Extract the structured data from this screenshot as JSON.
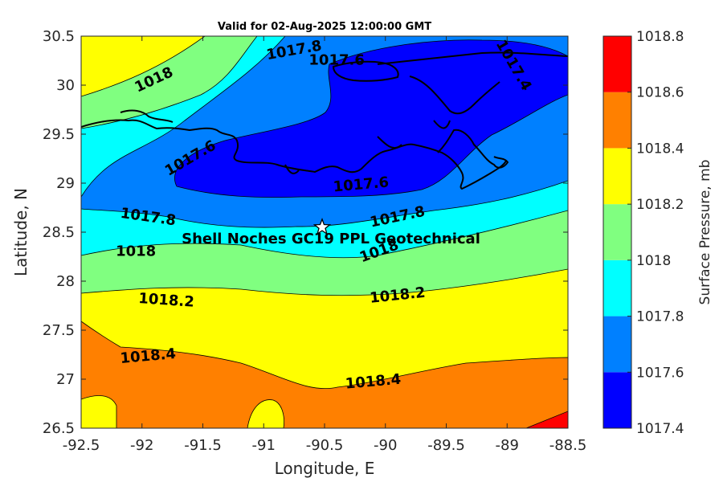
{
  "chart_data": {
    "type": "contour",
    "title": "Valid for 02-Aug-2025 12:00:00 GMT",
    "xlabel": "Longitude, E",
    "ylabel": "Latitude, N",
    "colorbar_label": "Surface Pressure, mb",
    "xlim": [
      -92.5,
      -88.5
    ],
    "ylim": [
      26.5,
      30.5
    ],
    "x_ticks": [
      "-92.5",
      "-92",
      "-91.5",
      "-91",
      "-90.5",
      "-90",
      "-89.5",
      "-89",
      "-88.5"
    ],
    "y_ticks": [
      "30.5",
      "30",
      "29.5",
      "29",
      "28.5",
      "28",
      "27.5",
      "27",
      "26.5"
    ],
    "levels": [
      {
        "value": "1017.4",
        "color": "#0000ff"
      },
      {
        "value": "1017.6",
        "color": "#0080ff"
      },
      {
        "value": "1017.8",
        "color": "#00ffff"
      },
      {
        "value": "1018",
        "color": "#80ff80"
      },
      {
        "value": "1018.2",
        "color": "#ffff00"
      },
      {
        "value": "1018.4",
        "color": "#ff8000"
      },
      {
        "value": "1018.6",
        "color": "#ff0000"
      },
      {
        "value": "1018.8",
        "color": "#800000"
      }
    ],
    "contour_labels": [
      {
        "text": "1017.8",
        "lon": -90.75,
        "lat": 30.35,
        "angle": -10
      },
      {
        "text": "1017.6",
        "lon": -90.4,
        "lat": 30.25,
        "angle": 0
      },
      {
        "text": "1017.4",
        "lon": -88.95,
        "lat": 30.2,
        "angle": 60
      },
      {
        "text": "1018",
        "lon": -91.9,
        "lat": 30.05,
        "angle": -25
      },
      {
        "text": "1017.6",
        "lon": -91.6,
        "lat": 29.25,
        "angle": -30
      },
      {
        "text": "1017.6",
        "lon": -90.2,
        "lat": 28.98,
        "angle": -5
      },
      {
        "text": "1017.8",
        "lon": -91.95,
        "lat": 28.65,
        "angle": 8
      },
      {
        "text": "1017.8",
        "lon": -89.9,
        "lat": 28.65,
        "angle": -12
      },
      {
        "text": "1018",
        "lon": -92.05,
        "lat": 28.3,
        "angle": 0
      },
      {
        "text": "1018",
        "lon": -90.05,
        "lat": 28.3,
        "angle": -20
      },
      {
        "text": "1018.2",
        "lon": -91.8,
        "lat": 27.8,
        "angle": 4
      },
      {
        "text": "1018.2",
        "lon": -89.9,
        "lat": 27.85,
        "angle": -6
      },
      {
        "text": "1018.4",
        "lon": -91.95,
        "lat": 27.23,
        "angle": -5
      },
      {
        "text": "1018.4",
        "lon": -90.1,
        "lat": 26.97,
        "angle": -5
      }
    ],
    "site": {
      "name": "Shell Noches   GC19 PPL  Geotechnical",
      "lon": -90.52,
      "lat": 28.55
    }
  }
}
